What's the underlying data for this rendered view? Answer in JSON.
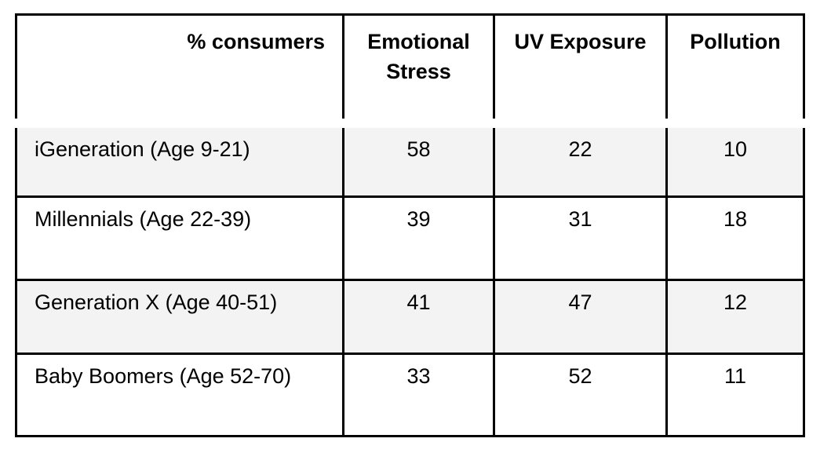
{
  "table": {
    "header": {
      "corner": "% consumers",
      "columns": [
        "Emotional Stress",
        "UV Exposure",
        "Pollution"
      ]
    },
    "rows": [
      {
        "label": "iGeneration (Age 9-21)",
        "values": [
          "58",
          "22",
          "10"
        ]
      },
      {
        "label": "Millennials (Age 22-39)",
        "values": [
          "39",
          "31",
          "18"
        ]
      },
      {
        "label": "Generation X (Age 40-51)",
        "values": [
          "41",
          "47",
          "12"
        ]
      },
      {
        "label": "Baby Boomers (Age 52-70)",
        "values": [
          "33",
          "52",
          "11"
        ]
      }
    ],
    "colors": {
      "border": "#000000",
      "shaded_row": "#f3f3f3",
      "background": "#ffffff"
    }
  }
}
